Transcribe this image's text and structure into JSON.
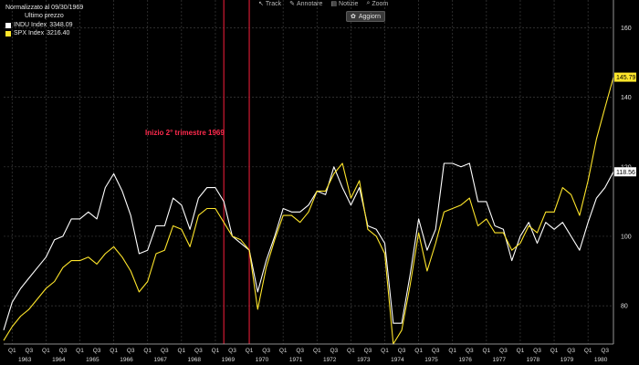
{
  "legend": {
    "title": "Normalizzato al 09/30/1969",
    "subtitle": "Ultimo prezzo",
    "series": [
      {
        "name": "INDU Index",
        "value": "3348.09",
        "color": "#ffffff"
      },
      {
        "name": "SPX Index",
        "value": "3216.40",
        "color": "#ffe62b"
      }
    ]
  },
  "toolbar": {
    "items": [
      {
        "label": "Track",
        "icon": "cursor-icon"
      },
      {
        "label": "Annotare",
        "icon": "pencil-icon"
      },
      {
        "label": "Notizie",
        "icon": "news-icon"
      },
      {
        "label": "Zoom",
        "icon": "zoom-icon"
      }
    ],
    "update_label": "Aggiorn"
  },
  "annotation": "Inizio 2° trimestre 1969",
  "chart_data": {
    "type": "line",
    "ylim": [
      69,
      168
    ],
    "yticks": [
      80,
      100,
      120,
      140,
      160
    ],
    "x_quarter_labels": [
      "Q1",
      "Q3",
      "Q1",
      "Q3",
      "Q1",
      "Q3",
      "Q1",
      "Q3",
      "Q1",
      "Q3",
      "Q1",
      "Q3",
      "Q1",
      "Q3",
      "Q1",
      "Q3",
      "Q1",
      "Q3",
      "Q1",
      "Q3",
      "Q1",
      "Q3",
      "Q1",
      "Q3",
      "Q1",
      "Q3",
      "Q1",
      "Q3",
      "Q1",
      "Q3",
      "Q1",
      "Q3",
      "Q1",
      "Q3",
      "Q1",
      "Q3"
    ],
    "x_year_labels": [
      "1963",
      "1964",
      "1965",
      "1966",
      "1967",
      "1968",
      "1969",
      "1970",
      "1971",
      "1972",
      "1973",
      "1974",
      "1975",
      "1976",
      "1977",
      "1978",
      "1979",
      "1980"
    ],
    "vertical_markers": [
      "1969 Q2",
      "1970 Q1"
    ],
    "series": [
      {
        "name": "INDU Index",
        "color": "#ffffff",
        "last_label": "118.56",
        "values": [
          73,
          81,
          85,
          88,
          91,
          94,
          99,
          100,
          105,
          105,
          107,
          105,
          114,
          118,
          113,
          106,
          95,
          96,
          103,
          103,
          111,
          109,
          102,
          111,
          114,
          114,
          110,
          100,
          98,
          96,
          84,
          93,
          100,
          108,
          107,
          107,
          109,
          113,
          112,
          120,
          114,
          109,
          114,
          103,
          102,
          98,
          75,
          75,
          89,
          105,
          96,
          102,
          121,
          121,
          120,
          121,
          110,
          110,
          103,
          102,
          93,
          100,
          104,
          98,
          104,
          102,
          104,
          100,
          96,
          104,
          111,
          114,
          118.56
        ]
      },
      {
        "name": "SPX Index",
        "color": "#ffe62b",
        "last_label": "145.79",
        "values": [
          70,
          74,
          77,
          79,
          82,
          85,
          87,
          91,
          93,
          93,
          94,
          92,
          95,
          97,
          94,
          90,
          84,
          87,
          95,
          96,
          103,
          102,
          97,
          106,
          108,
          108,
          104,
          100,
          99,
          96,
          79,
          91,
          99,
          106,
          106,
          104,
          107,
          113,
          113,
          118,
          121,
          111,
          116,
          102,
          100,
          95,
          69,
          73,
          86,
          101,
          90,
          98,
          107,
          108,
          109,
          111,
          103,
          105,
          101,
          101,
          96,
          98,
          103,
          101,
          107,
          107,
          114,
          112,
          106,
          116,
          128,
          137,
          145.79
        ]
      }
    ]
  }
}
